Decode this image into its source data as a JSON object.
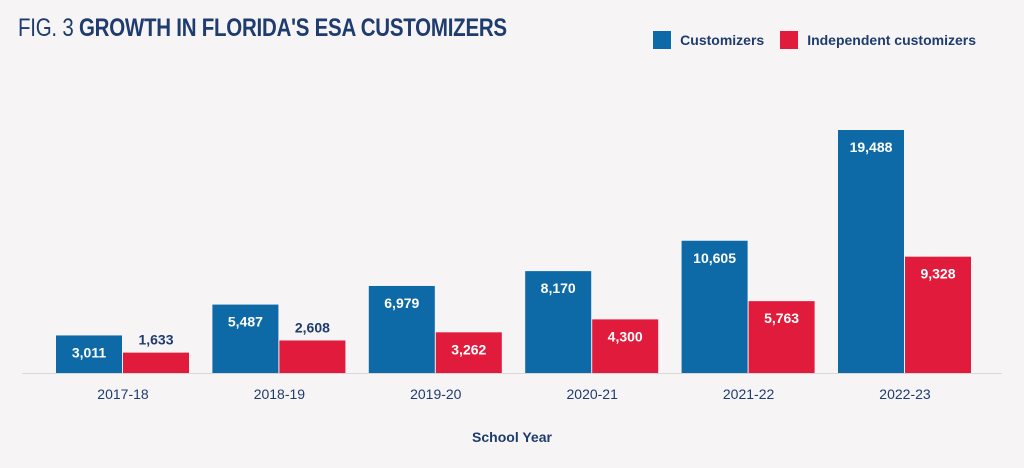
{
  "title": {
    "prefix": "FIG. 3",
    "main": "GROWTH IN FLORIDA'S ESA CUSTOMIZERS"
  },
  "colors": {
    "customizers": "#0e6aa6",
    "independent": "#e11b3c",
    "text": "#1f3c6e",
    "axis": "#d8d6d8",
    "background": "#f6f4f5"
  },
  "chart_data": {
    "type": "bar",
    "title": "GROWTH IN FLORIDA'S ESA CUSTOMIZERS",
    "xlabel": "School Year",
    "ylabel": "",
    "categories": [
      "2017-18",
      "2018-19",
      "2019-20",
      "2020-21",
      "2021-22",
      "2022-23"
    ],
    "series": [
      {
        "name": "Customizers",
        "values": [
          3011,
          5487,
          6979,
          8170,
          10605,
          19488
        ]
      },
      {
        "name": "Independent customizers",
        "values": [
          1633,
          2608,
          3262,
          4300,
          5763,
          9328
        ]
      }
    ],
    "value_labels": [
      [
        "3,011",
        "5,487",
        "6,979",
        "8,170",
        "10,605",
        "19,488"
      ],
      [
        "1,633",
        "2,608",
        "3,262",
        "4,300",
        "5,763",
        "9,328"
      ]
    ],
    "ylim": [
      0,
      20000
    ],
    "grid": false,
    "legend_position": "top-right"
  }
}
